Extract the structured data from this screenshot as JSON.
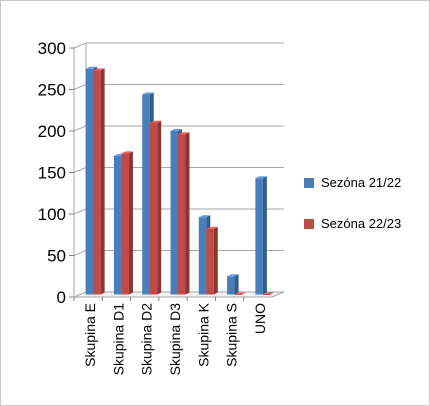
{
  "chart_data": {
    "type": "bar",
    "title": "",
    "xlabel": "",
    "ylabel": "",
    "ylim": [
      0,
      300
    ],
    "yticks": [
      0,
      50,
      100,
      150,
      200,
      250,
      300
    ],
    "ytick_labels": [
      "0",
      "50",
      "100",
      "150",
      "200",
      "250",
      "300"
    ],
    "categories": [
      "Skupina E",
      "Skupina D1",
      "Skupina D2",
      "Skupina D3",
      "Skupina K",
      "Skupina S",
      "UNO"
    ],
    "series": [
      {
        "name": "Sezóna 21/22",
        "color": "#4A7EBB",
        "values": [
          272,
          167,
          241,
          197,
          93,
          22,
          140
        ]
      },
      {
        "name": "Sezóna 22/23",
        "color": "#BE4B48",
        "values": [
          270,
          170,
          207,
          193,
          79,
          0,
          0
        ]
      }
    ],
    "grid": true,
    "chart_style": "3d-clustered-column",
    "legend_position": "right"
  }
}
